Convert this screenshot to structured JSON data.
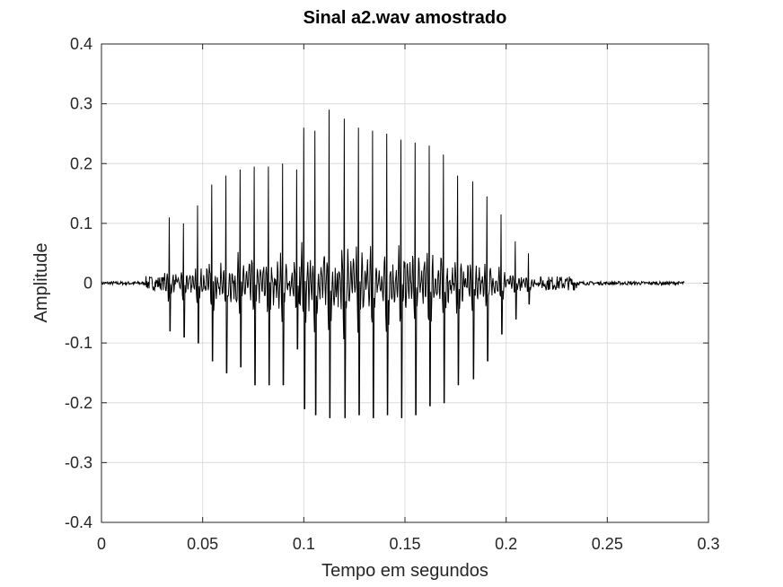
{
  "chart_data": {
    "type": "line",
    "title": "Sinal a2.wav amostrado",
    "xlabel": "Tempo em segundos",
    "ylabel": "Amplitude",
    "xlim": [
      0,
      0.3
    ],
    "ylim": [
      -0.4,
      0.4
    ],
    "xticks": [
      0,
      0.05,
      0.1,
      0.15,
      0.2,
      0.25,
      0.3
    ],
    "xtick_labels": [
      "0",
      "0.05",
      "0.1",
      "0.15",
      "0.2",
      "0.25",
      "0.3"
    ],
    "yticks": [
      -0.4,
      -0.3,
      -0.2,
      -0.1,
      0,
      0.1,
      0.2,
      0.3,
      0.4
    ],
    "ytick_labels": [
      "-0.4",
      "-0.3",
      "-0.2",
      "-0.1",
      "0",
      "0.1",
      "0.2",
      "0.3",
      "0.4"
    ],
    "grid": true,
    "line_color": "#000000",
    "signal": {
      "duration": 0.288,
      "voiced_start": 0.033,
      "voiced_end": 0.215,
      "pulse_period": 0.00725,
      "pulses": [
        {
          "t": 0.0335,
          "max": 0.11,
          "min": -0.08
        },
        {
          "t": 0.0405,
          "max": 0.1,
          "min": -0.09
        },
        {
          "t": 0.0475,
          "max": 0.13,
          "min": -0.1
        },
        {
          "t": 0.0545,
          "max": 0.165,
          "min": -0.13
        },
        {
          "t": 0.0615,
          "max": 0.18,
          "min": -0.15
        },
        {
          "t": 0.0685,
          "max": 0.19,
          "min": -0.14
        },
        {
          "t": 0.0755,
          "max": 0.195,
          "min": -0.17
        },
        {
          "t": 0.0825,
          "max": 0.195,
          "min": -0.17
        },
        {
          "t": 0.0895,
          "max": 0.2,
          "min": -0.17
        },
        {
          "t": 0.0965,
          "max": 0.19,
          "min": -0.11
        },
        {
          "t": 0.1,
          "max": 0.26,
          "min": -0.21
        },
        {
          "t": 0.1055,
          "max": 0.255,
          "min": -0.22
        },
        {
          "t": 0.1125,
          "max": 0.29,
          "min": -0.225
        },
        {
          "t": 0.12,
          "max": 0.275,
          "min": -0.225
        },
        {
          "t": 0.127,
          "max": 0.26,
          "min": -0.22
        },
        {
          "t": 0.134,
          "max": 0.255,
          "min": -0.225
        },
        {
          "t": 0.141,
          "max": 0.25,
          "min": -0.22
        },
        {
          "t": 0.148,
          "max": 0.24,
          "min": -0.225
        },
        {
          "t": 0.155,
          "max": 0.235,
          "min": -0.22
        },
        {
          "t": 0.162,
          "max": 0.23,
          "min": -0.205
        },
        {
          "t": 0.169,
          "max": 0.215,
          "min": -0.2
        },
        {
          "t": 0.176,
          "max": 0.18,
          "min": -0.17
        },
        {
          "t": 0.1835,
          "max": 0.17,
          "min": -0.16
        },
        {
          "t": 0.1905,
          "max": 0.145,
          "min": -0.13
        },
        {
          "t": 0.1975,
          "max": 0.115,
          "min": -0.085
        },
        {
          "t": 0.2045,
          "max": 0.07,
          "min": -0.06
        },
        {
          "t": 0.211,
          "max": 0.05,
          "min": -0.035
        }
      ]
    }
  }
}
